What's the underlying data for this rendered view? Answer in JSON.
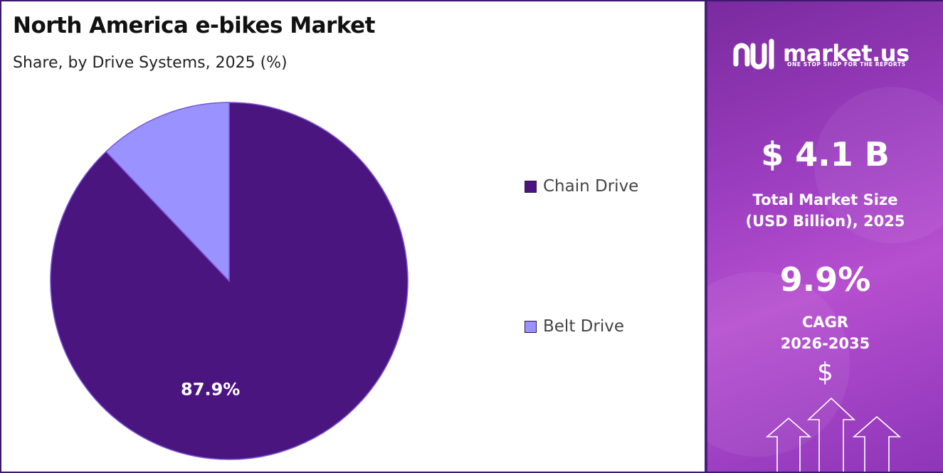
{
  "chart_data": {
    "type": "pie",
    "title": "North America e-bikes Market",
    "subtitle": "Share, by Drive Systems, 2025 (%)",
    "categories": [
      "Chain Drive",
      "Belt Drive"
    ],
    "values": [
      87.9,
      12.1
    ],
    "data_labels": [
      "87.9%",
      ""
    ],
    "colors": [
      "#4b1580",
      "#9a92ff"
    ],
    "legend_position": "right"
  },
  "legend": {
    "items": [
      {
        "label": "Chain Drive",
        "color": "#4b1580"
      },
      {
        "label": "Belt Drive",
        "color": "#9a92ff"
      }
    ]
  },
  "sidebar": {
    "brand_name": "market.us",
    "brand_tagline": "ONE STOP SHOP FOR THE REPORTS",
    "market_size_value": "$ 4.1 B",
    "market_size_label_line1": "Total Market Size",
    "market_size_label_line2": "(USD Billion), 2025",
    "cagr_value": "9.9%",
    "cagr_label_line1": "CAGR",
    "cagr_label_line2": "2026-2035",
    "dollar_symbol": "$",
    "icons": [
      "marketus-logo-icon",
      "dollar-icon",
      "growth-arrows-icon"
    ]
  }
}
